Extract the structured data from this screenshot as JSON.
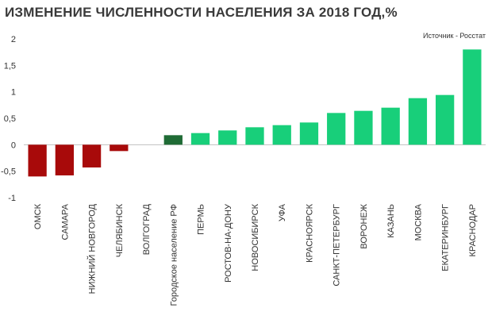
{
  "title": "ИЗМЕНЕНИЕ ЧИСЛЕННОСТИ НАСЕЛЕНИЯ ЗА 2018 ГОД,%",
  "source": "Источник - Росстат",
  "colors": {
    "negative": "#a80a0a",
    "reference": "#1f6b35",
    "positive": "#18cf7a",
    "axis": "#bfbfbf"
  },
  "chart_data": {
    "type": "bar",
    "title": "ИЗМЕНЕНИЕ ЧИСЛЕННОСТИ НАСЕЛЕНИЯ ЗА 2018 ГОД,%",
    "xlabel": "",
    "ylabel": "",
    "ylim": [
      -1,
      2
    ],
    "yticks": [
      -1,
      -0.5,
      0,
      0.5,
      1,
      1.5,
      2
    ],
    "ytick_labels": [
      "-1",
      "-0,5",
      "0",
      "0,5",
      "1",
      "1,5",
      "2"
    ],
    "grid": false,
    "categories": [
      "ОМСК",
      "САМАРА",
      "НИЖНИЙ НОВГОРОД",
      "ЧЕЛЯБИНСК",
      "ВОЛГОГРАД",
      "Городское население РФ",
      "ПЕРМЬ",
      "РОСТОВ-НА-ДОНУ",
      "НОВОСИБИРСК",
      "УФА",
      "КРАСНОЯРСК",
      "САНКТ-ПЕТЕРБУРГ",
      "ВОРОНЕЖ",
      "КАЗАНЬ",
      "МОСКВА",
      "ЕКАТЕРИНБУРГ",
      "КРАСНОДАР"
    ],
    "values": [
      -0.6,
      -0.58,
      -0.43,
      -0.12,
      0.0,
      0.18,
      0.22,
      0.27,
      0.33,
      0.37,
      0.42,
      0.6,
      0.64,
      0.7,
      0.88,
      0.94,
      1.8
    ],
    "bar_kinds": [
      "negative",
      "negative",
      "negative",
      "negative",
      "negative",
      "reference",
      "positive",
      "positive",
      "positive",
      "positive",
      "positive",
      "positive",
      "positive",
      "positive",
      "positive",
      "positive",
      "positive"
    ]
  }
}
